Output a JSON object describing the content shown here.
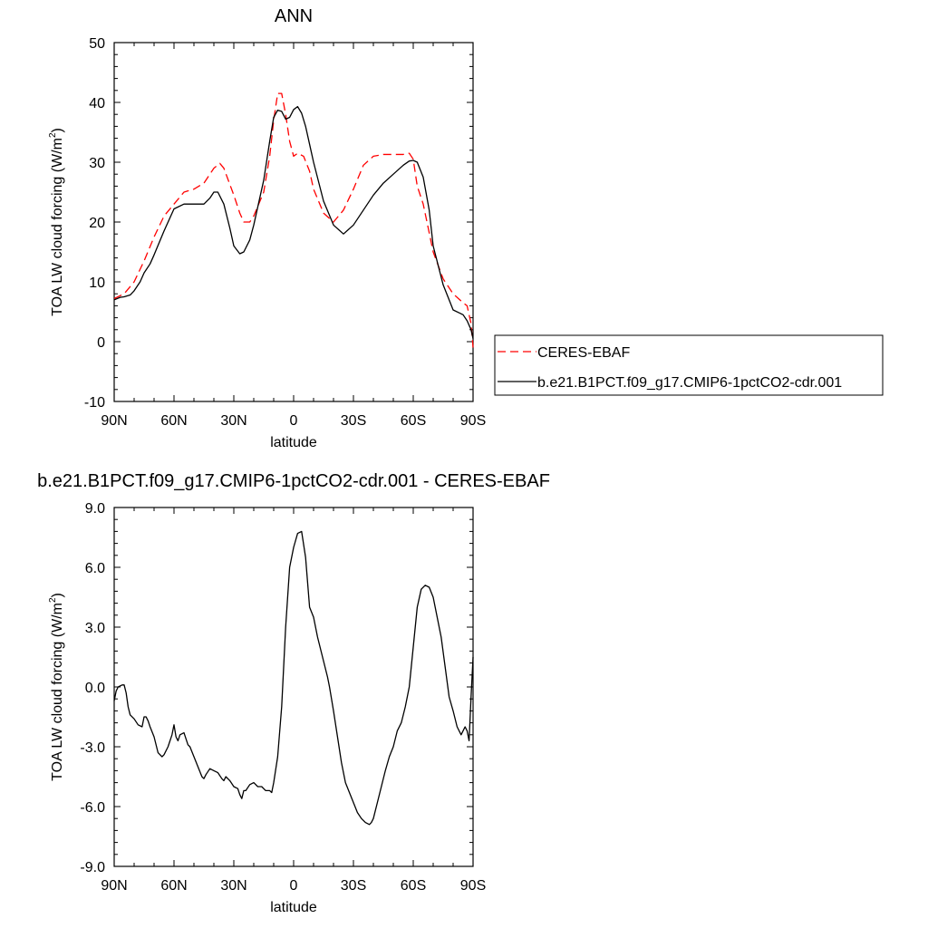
{
  "chart_data": [
    {
      "type": "line",
      "title": "ANN",
      "xlabel": "latitude",
      "ylabel": "TOA LW cloud forcing (W/m",
      "ylabel_sup": "2",
      "ylabel_tail": ")",
      "xlim": [
        90,
        -90
      ],
      "ylim": [
        -10,
        50
      ],
      "xticks": [
        90,
        60,
        30,
        0,
        -30,
        -60,
        -90
      ],
      "xtick_labels": [
        "90N",
        "60N",
        "30N",
        "0",
        "30S",
        "60S",
        "90S"
      ],
      "yticks": [
        -10,
        0,
        10,
        20,
        30,
        40,
        50
      ],
      "ytick_labels": [
        "-10",
        "0",
        "10",
        "20",
        "30",
        "40",
        "50"
      ],
      "legend": {
        "placement": "right"
      },
      "series": [
        {
          "name": "CERES-EBAF",
          "color": "#ff0000",
          "dash": "dashed",
          "x": [
            90,
            85,
            80,
            75,
            70,
            65,
            60,
            55,
            50,
            45,
            40,
            37,
            35,
            30,
            27,
            25,
            22,
            20,
            15,
            12,
            10,
            8,
            6,
            4,
            2,
            0,
            -2,
            -5,
            -8,
            -10,
            -15,
            -20,
            -25,
            -30,
            -35,
            -40,
            -45,
            -50,
            -55,
            -58,
            -60,
            -62,
            -65,
            -70,
            -75,
            -80,
            -85,
            -87,
            -89,
            -90
          ],
          "y": [
            7.2,
            8.0,
            10.0,
            13.5,
            17.5,
            21.0,
            23.0,
            25.0,
            25.5,
            26.5,
            29.0,
            29.8,
            29.0,
            24.5,
            21.5,
            20.0,
            20.0,
            21.0,
            25.0,
            31.0,
            37.0,
            41.5,
            41.5,
            38.0,
            33.5,
            31.0,
            31.5,
            31.0,
            28.5,
            25.5,
            21.5,
            20.0,
            22.0,
            25.5,
            29.5,
            31.0,
            31.3,
            31.3,
            31.3,
            31.5,
            30.5,
            26.0,
            23.0,
            15.0,
            10.5,
            8.0,
            6.5,
            6.0,
            3.0,
            -1.0
          ]
        },
        {
          "name": "b.e21.B1PCT.f09_g17.CMIP6-1pctCO2-cdr.001",
          "color": "#000000",
          "dash": "solid",
          "x": [
            90,
            87,
            85,
            82,
            80,
            77,
            75,
            72,
            70,
            65,
            60,
            55,
            50,
            45,
            42,
            40,
            38,
            35,
            32,
            30,
            27,
            25,
            22,
            20,
            15,
            12,
            10,
            8,
            6,
            4,
            2,
            0,
            -2,
            -4,
            -6,
            -8,
            -10,
            -15,
            -20,
            -25,
            -30,
            -35,
            -40,
            -45,
            -50,
            -55,
            -58,
            -60,
            -62,
            -65,
            -68,
            -70,
            -75,
            -80,
            -85,
            -87,
            -89,
            -90
          ],
          "y": [
            7.0,
            7.4,
            7.5,
            7.8,
            8.5,
            10.0,
            11.5,
            13.0,
            14.5,
            18.5,
            22.2,
            23.0,
            23.0,
            23.0,
            24.0,
            25.0,
            25.0,
            23.0,
            19.0,
            16.0,
            14.7,
            15.0,
            17.0,
            19.5,
            27.0,
            33.5,
            37.5,
            38.7,
            38.5,
            37.2,
            37.5,
            38.8,
            39.3,
            38.2,
            36.0,
            33.0,
            30.0,
            23.5,
            19.5,
            18.0,
            19.5,
            22.0,
            24.5,
            26.5,
            28.0,
            29.5,
            30.2,
            30.3,
            30.0,
            27.5,
            22.0,
            16.0,
            9.5,
            5.3,
            4.5,
            3.5,
            2.0,
            0.5
          ]
        }
      ]
    },
    {
      "type": "line",
      "title": "b.e21.B1PCT.f09_g17.CMIP6-1pctCO2-cdr.001 - CERES-EBAF",
      "xlabel": "latitude",
      "ylabel": "TOA LW cloud forcing (W/m",
      "ylabel_sup": "2",
      "ylabel_tail": ")",
      "xlim": [
        90,
        -90
      ],
      "ylim": [
        -9,
        9
      ],
      "xticks": [
        90,
        60,
        30,
        0,
        -30,
        -60,
        -90
      ],
      "xtick_labels": [
        "90N",
        "60N",
        "30N",
        "0",
        "30S",
        "60S",
        "90S"
      ],
      "yticks": [
        -9,
        -6,
        -3,
        0,
        3,
        6,
        9
      ],
      "ytick_labels": [
        "-9.0",
        "-6.0",
        "-3.0",
        "0.0",
        "3.0",
        "6.0",
        "9.0"
      ],
      "series": [
        {
          "color": "#000000",
          "dash": "solid",
          "x": [
            90,
            89,
            88,
            86,
            85,
            84,
            83,
            82,
            80,
            78,
            76,
            75,
            74,
            73,
            72,
            70,
            68,
            66,
            65,
            63,
            61,
            60,
            59,
            58,
            57,
            55,
            54,
            53,
            52,
            50,
            48,
            46,
            45,
            44,
            42,
            40,
            38,
            36,
            35,
            34,
            32,
            30,
            28,
            27,
            26,
            25,
            24,
            22,
            20,
            18,
            16,
            14,
            12,
            11,
            10,
            8,
            6,
            4,
            2,
            0,
            -2,
            -4,
            -6,
            -8,
            -10,
            -12,
            -14,
            -17,
            -18,
            -20,
            -22,
            -24,
            -26,
            -28,
            -30,
            -32,
            -34,
            -36,
            -38,
            -39,
            -40,
            -42,
            -44,
            -46,
            -48,
            -50,
            -52,
            -54,
            -56,
            -58,
            -60,
            -62,
            -64,
            -66,
            -68,
            -70,
            -72,
            -74,
            -76,
            -78,
            -80,
            -82,
            -84,
            -85,
            -86,
            -87,
            -88,
            -89,
            -90
          ],
          "y": [
            -0.7,
            -0.2,
            0.0,
            0.1,
            0.1,
            -0.3,
            -1.0,
            -1.4,
            -1.6,
            -1.9,
            -2.0,
            -1.5,
            -1.5,
            -1.7,
            -2.0,
            -2.5,
            -3.3,
            -3.5,
            -3.4,
            -3.0,
            -2.4,
            -1.9,
            -2.5,
            -2.7,
            -2.4,
            -2.3,
            -2.6,
            -2.9,
            -3.0,
            -3.5,
            -4.0,
            -4.5,
            -4.6,
            -4.4,
            -4.1,
            -4.2,
            -4.3,
            -4.6,
            -4.7,
            -4.5,
            -4.7,
            -5.0,
            -5.1,
            -5.4,
            -5.6,
            -5.2,
            -5.2,
            -4.9,
            -4.8,
            -5.0,
            -5.0,
            -5.2,
            -5.2,
            -5.3,
            -4.8,
            -3.5,
            -1.0,
            3.0,
            6.0,
            7.0,
            7.7,
            7.8,
            6.5,
            4.0,
            3.5,
            2.5,
            1.7,
            0.5,
            0.0,
            -1.2,
            -2.5,
            -3.8,
            -4.8,
            -5.3,
            -5.8,
            -6.3,
            -6.6,
            -6.8,
            -6.9,
            -6.8,
            -6.6,
            -5.8,
            -5.0,
            -4.2,
            -3.5,
            -3.0,
            -2.2,
            -1.8,
            -1.0,
            0.0,
            2.0,
            4.0,
            4.9,
            5.1,
            5.0,
            4.5,
            3.5,
            2.5,
            1.0,
            -0.5,
            -1.2,
            -2.0,
            -2.4,
            -2.2,
            -2.0,
            -2.2,
            -2.7,
            -0.5,
            1.5
          ]
        }
      ]
    }
  ]
}
